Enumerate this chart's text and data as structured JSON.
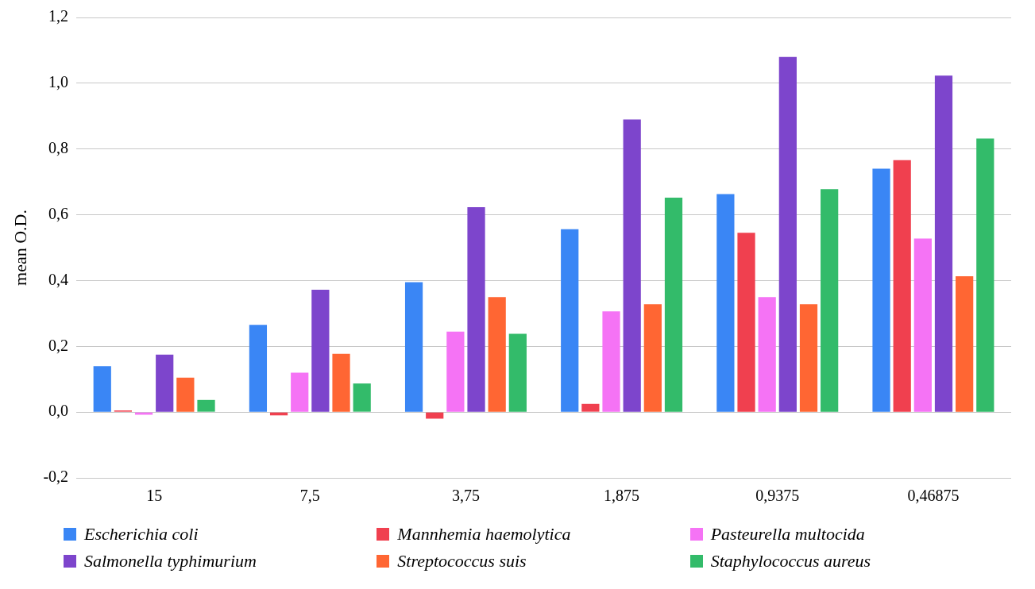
{
  "chart_data": {
    "type": "bar",
    "ylabel": "mean O.D.",
    "categories": [
      "15",
      "7,5",
      "3,75",
      "1,875",
      "0,9375",
      "0,46875"
    ],
    "series": [
      {
        "name": "Escherichia coli",
        "color": "#3a86f5",
        "values": [
          0.14,
          0.265,
          0.395,
          0.556,
          0.663,
          0.74
        ]
      },
      {
        "name": "Mannhemia haemolytica",
        "color": "#f0404f",
        "values": [
          0.005,
          -0.01,
          -0.02,
          0.025,
          0.545,
          0.766
        ]
      },
      {
        "name": "Pasteurella multocida",
        "color": "#f573f5",
        "values": [
          -0.008,
          0.12,
          0.245,
          0.306,
          0.35,
          0.528
        ]
      },
      {
        "name": "Salmonella typhimurium",
        "color": "#7d45cc",
        "values": [
          0.175,
          0.372,
          0.623,
          0.89,
          1.08,
          1.023
        ]
      },
      {
        "name": "Streptococcus suis",
        "color": "#ff6633",
        "values": [
          0.105,
          0.177,
          0.35,
          0.328,
          0.328,
          0.413
        ]
      },
      {
        "name": "Staphylococcus aureus",
        "color": "#33bb6a",
        "values": [
          0.037,
          0.087,
          0.238,
          0.652,
          0.678,
          0.832
        ]
      }
    ],
    "ylim": [
      -0.2,
      1.2
    ],
    "yticks": [
      {
        "value": -0.2,
        "label": "-0,2"
      },
      {
        "value": 0,
        "label": "0,0"
      },
      {
        "value": 0.2,
        "label": "0,2"
      },
      {
        "value": 0.4,
        "label": "0,4"
      },
      {
        "value": 0.6,
        "label": "0,6"
      },
      {
        "value": 0.8,
        "label": "0,8"
      },
      {
        "value": 1,
        "label": "1,0"
      },
      {
        "value": 1.2,
        "label": "1,2"
      }
    ],
    "grid": "y",
    "legend": "bottom"
  }
}
